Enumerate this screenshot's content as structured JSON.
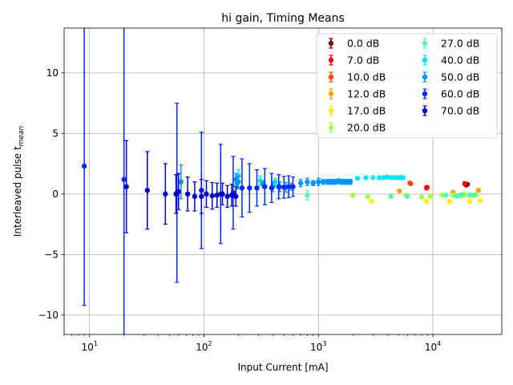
{
  "chart_data": {
    "type": "scatter",
    "title": "hi gain, Timing Means",
    "xlabel": "Input Current [mA]",
    "ylabel_main": "Interleaved pulse t",
    "ylabel_sub": "mean",
    "xscale": "log",
    "xlim": [
      6,
      40000
    ],
    "ylim": [
      -11.6,
      13.7
    ],
    "xticks": [
      {
        "value": 10,
        "base": "10",
        "exp": "1"
      },
      {
        "value": 100,
        "base": "10",
        "exp": "2"
      },
      {
        "value": 1000,
        "base": "10",
        "exp": "3"
      },
      {
        "value": 10000,
        "base": "10",
        "exp": "4"
      }
    ],
    "yticks": [
      {
        "value": -10,
        "label": "−10"
      },
      {
        "value": -5,
        "label": "−5"
      },
      {
        "value": 0,
        "label": "0"
      },
      {
        "value": 5,
        "label": "5"
      },
      {
        "value": 10,
        "label": "10"
      }
    ],
    "grid": true,
    "legend_position": "top-right",
    "legend_columns": 2,
    "series": [
      {
        "name": "0.0 dB",
        "color": "#7f0000",
        "points": [
          [
            19500,
            0.75,
            0.1
          ],
          [
            20000,
            0.8,
            0.1
          ]
        ]
      },
      {
        "name": "7.0 dB",
        "color": "#ff0000",
        "points": [
          [
            8800,
            0.5,
            0.1
          ],
          [
            8900,
            0.55,
            0.1
          ],
          [
            19000,
            0.85,
            0.1
          ]
        ]
      },
      {
        "name": "10.0 dB",
        "color": "#ff4800",
        "points": [
          [
            6300,
            0.9,
            0.05
          ],
          [
            6400,
            0.85,
            0.05
          ]
        ]
      },
      {
        "name": "12.0 dB",
        "color": "#ffa000",
        "points": [
          [
            5100,
            0.25,
            0.05
          ],
          [
            15000,
            0.15,
            0.05
          ],
          [
            25000,
            0.3,
            0.05
          ]
        ]
      },
      {
        "name": "17.0 dB",
        "color": "#ffee00",
        "points": [
          [
            2900,
            -0.6,
            0.05
          ],
          [
            8800,
            -0.6,
            0.05
          ],
          [
            14000,
            -0.6,
            0.05
          ],
          [
            21000,
            -0.6,
            0.05
          ],
          [
            26000,
            -0.55,
            0.05
          ]
        ]
      },
      {
        "name": "20.0 dB",
        "color": "#a4ff53",
        "points": [
          [
            2000,
            -0.1,
            0.15
          ],
          [
            2700,
            -0.2,
            0.05
          ],
          [
            5800,
            -0.1,
            0.05
          ],
          [
            8000,
            -0.25,
            0.05
          ],
          [
            9500,
            -0.2,
            0.05
          ],
          [
            12000,
            -0.1,
            0.05
          ],
          [
            15000,
            -0.1,
            0.05
          ],
          [
            17000,
            -0.15,
            0.05
          ],
          [
            19000,
            -0.05,
            0.05
          ],
          [
            22000,
            -0.1,
            0.05
          ],
          [
            24000,
            -0.05,
            0.05
          ]
        ]
      },
      {
        "name": "27.0 dB",
        "color": "#53ffa4",
        "points": [
          [
            800,
            -0.1,
            0.4
          ],
          [
            4300,
            -0.2,
            0.05
          ],
          [
            6000,
            -0.2,
            0.05
          ],
          [
            13000,
            -0.1,
            0.05
          ],
          [
            16000,
            -0.15,
            0.05
          ],
          [
            17500,
            -0.1,
            0.05
          ],
          [
            18000,
            -0.05,
            0.05
          ],
          [
            21000,
            -0.1,
            0.05
          ],
          [
            23000,
            -0.1,
            0.05
          ]
        ]
      },
      {
        "name": "40.0 dB",
        "color": "#00e8f0",
        "points": [
          [
            200,
            1.5,
            0.5
          ],
          [
            310,
            1.1,
            0.4
          ],
          [
            420,
            1.0,
            0.3
          ],
          [
            2200,
            1.3,
            0.05
          ],
          [
            2600,
            1.35,
            0.05
          ],
          [
            3000,
            1.35,
            0.05
          ],
          [
            3400,
            1.35,
            0.05
          ],
          [
            3700,
            1.35,
            0.05
          ],
          [
            4000,
            1.4,
            0.05
          ],
          [
            4300,
            1.35,
            0.05
          ],
          [
            4600,
            1.35,
            0.05
          ],
          [
            4900,
            1.35,
            0.05
          ],
          [
            5200,
            1.35,
            0.05
          ],
          [
            5500,
            1.35,
            0.05
          ]
        ]
      },
      {
        "name": "50.0 dB",
        "color": "#0094ff",
        "points": [
          [
            63,
            1.0,
            1.4
          ],
          [
            190,
            1.2,
            0.5
          ],
          [
            195,
            0.9,
            0.5
          ],
          [
            200,
            1.0,
            0.5
          ],
          [
            330,
            0.8,
            0.3
          ],
          [
            400,
            0.6,
            0.4
          ],
          [
            460,
            0.6,
            0.4
          ],
          [
            520,
            0.55,
            0.4
          ],
          [
            580,
            0.6,
            0.3
          ],
          [
            700,
            0.9,
            0.3
          ],
          [
            800,
            1.0,
            0.3
          ],
          [
            900,
            0.9,
            0.2
          ],
          [
            1000,
            1.0,
            0.3
          ],
          [
            1100,
            1.0,
            0.2
          ],
          [
            1200,
            1.0,
            0.2
          ],
          [
            1300,
            1.0,
            0.2
          ],
          [
            1400,
            1.0,
            0.2
          ],
          [
            1500,
            1.05,
            0.2
          ],
          [
            1600,
            1.0,
            0.2
          ],
          [
            1700,
            1.0,
            0.2
          ],
          [
            1800,
            1.0,
            0.2
          ],
          [
            1900,
            1.0,
            0.2
          ]
        ]
      },
      {
        "name": "60.0 dB",
        "color": "#0028ff",
        "points": [
          [
            9,
            2.3,
            11.5
          ],
          [
            20,
            1.2,
            14
          ],
          [
            58,
            0.1,
            7.4
          ],
          [
            95,
            0.3,
            4.8
          ],
          [
            140,
            0.0,
            4.1
          ],
          [
            180,
            0.1,
            3.0
          ],
          [
            215,
            0.5,
            2.4
          ],
          [
            250,
            0.5,
            2.0
          ],
          [
            290,
            0.5,
            1.5
          ],
          [
            340,
            0.6,
            1.5
          ],
          [
            390,
            0.5,
            1.2
          ],
          [
            450,
            0.6,
            1.0
          ],
          [
            500,
            0.55,
            0.9
          ],
          [
            550,
            0.6,
            0.9
          ],
          [
            600,
            0.6,
            0.8
          ]
        ]
      },
      {
        "name": "70.0 dB",
        "color": "#0000cd",
        "points": [
          [
            21,
            0.6,
            3.8
          ],
          [
            32,
            0.3,
            3.2
          ],
          [
            46,
            0.0,
            2.5
          ],
          [
            57,
            0.0,
            1.6
          ],
          [
            60,
            0.2,
            1.5
          ],
          [
            72,
            0.0,
            1.4
          ],
          [
            83,
            -0.2,
            1.2
          ],
          [
            95,
            -0.2,
            1.4
          ],
          [
            105,
            0.0,
            1.1
          ],
          [
            118,
            -0.15,
            1.1
          ],
          [
            130,
            -0.1,
            1.0
          ],
          [
            145,
            0.0,
            0.9
          ],
          [
            160,
            -0.2,
            0.9
          ],
          [
            175,
            -0.1,
            0.9
          ],
          [
            190,
            -0.2,
            0.8
          ]
        ]
      }
    ]
  }
}
